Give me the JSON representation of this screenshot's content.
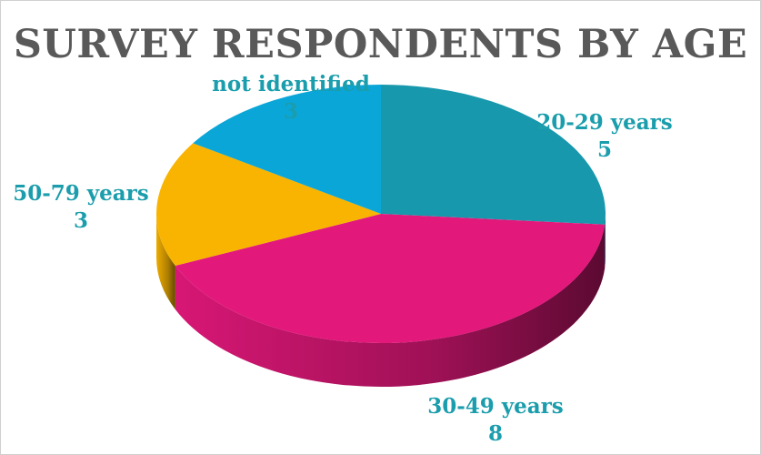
{
  "chart_data": {
    "type": "pie",
    "title": "SURVEY RESPONDENTS BY AGE",
    "categories": [
      "20-29 years",
      "30-49 years",
      "50-79 years",
      "not identified"
    ],
    "values": [
      5,
      8,
      3,
      3
    ],
    "legend": "none",
    "data_labels": "category and value",
    "colors": {
      "20-29 years": "#1898ac",
      "30-49 years": "#e3187b",
      "50-79 years": "#f8b400",
      "not identified": "#0aa6d8",
      "label_text": "#1a9dac",
      "title_text": "#595959"
    }
  }
}
